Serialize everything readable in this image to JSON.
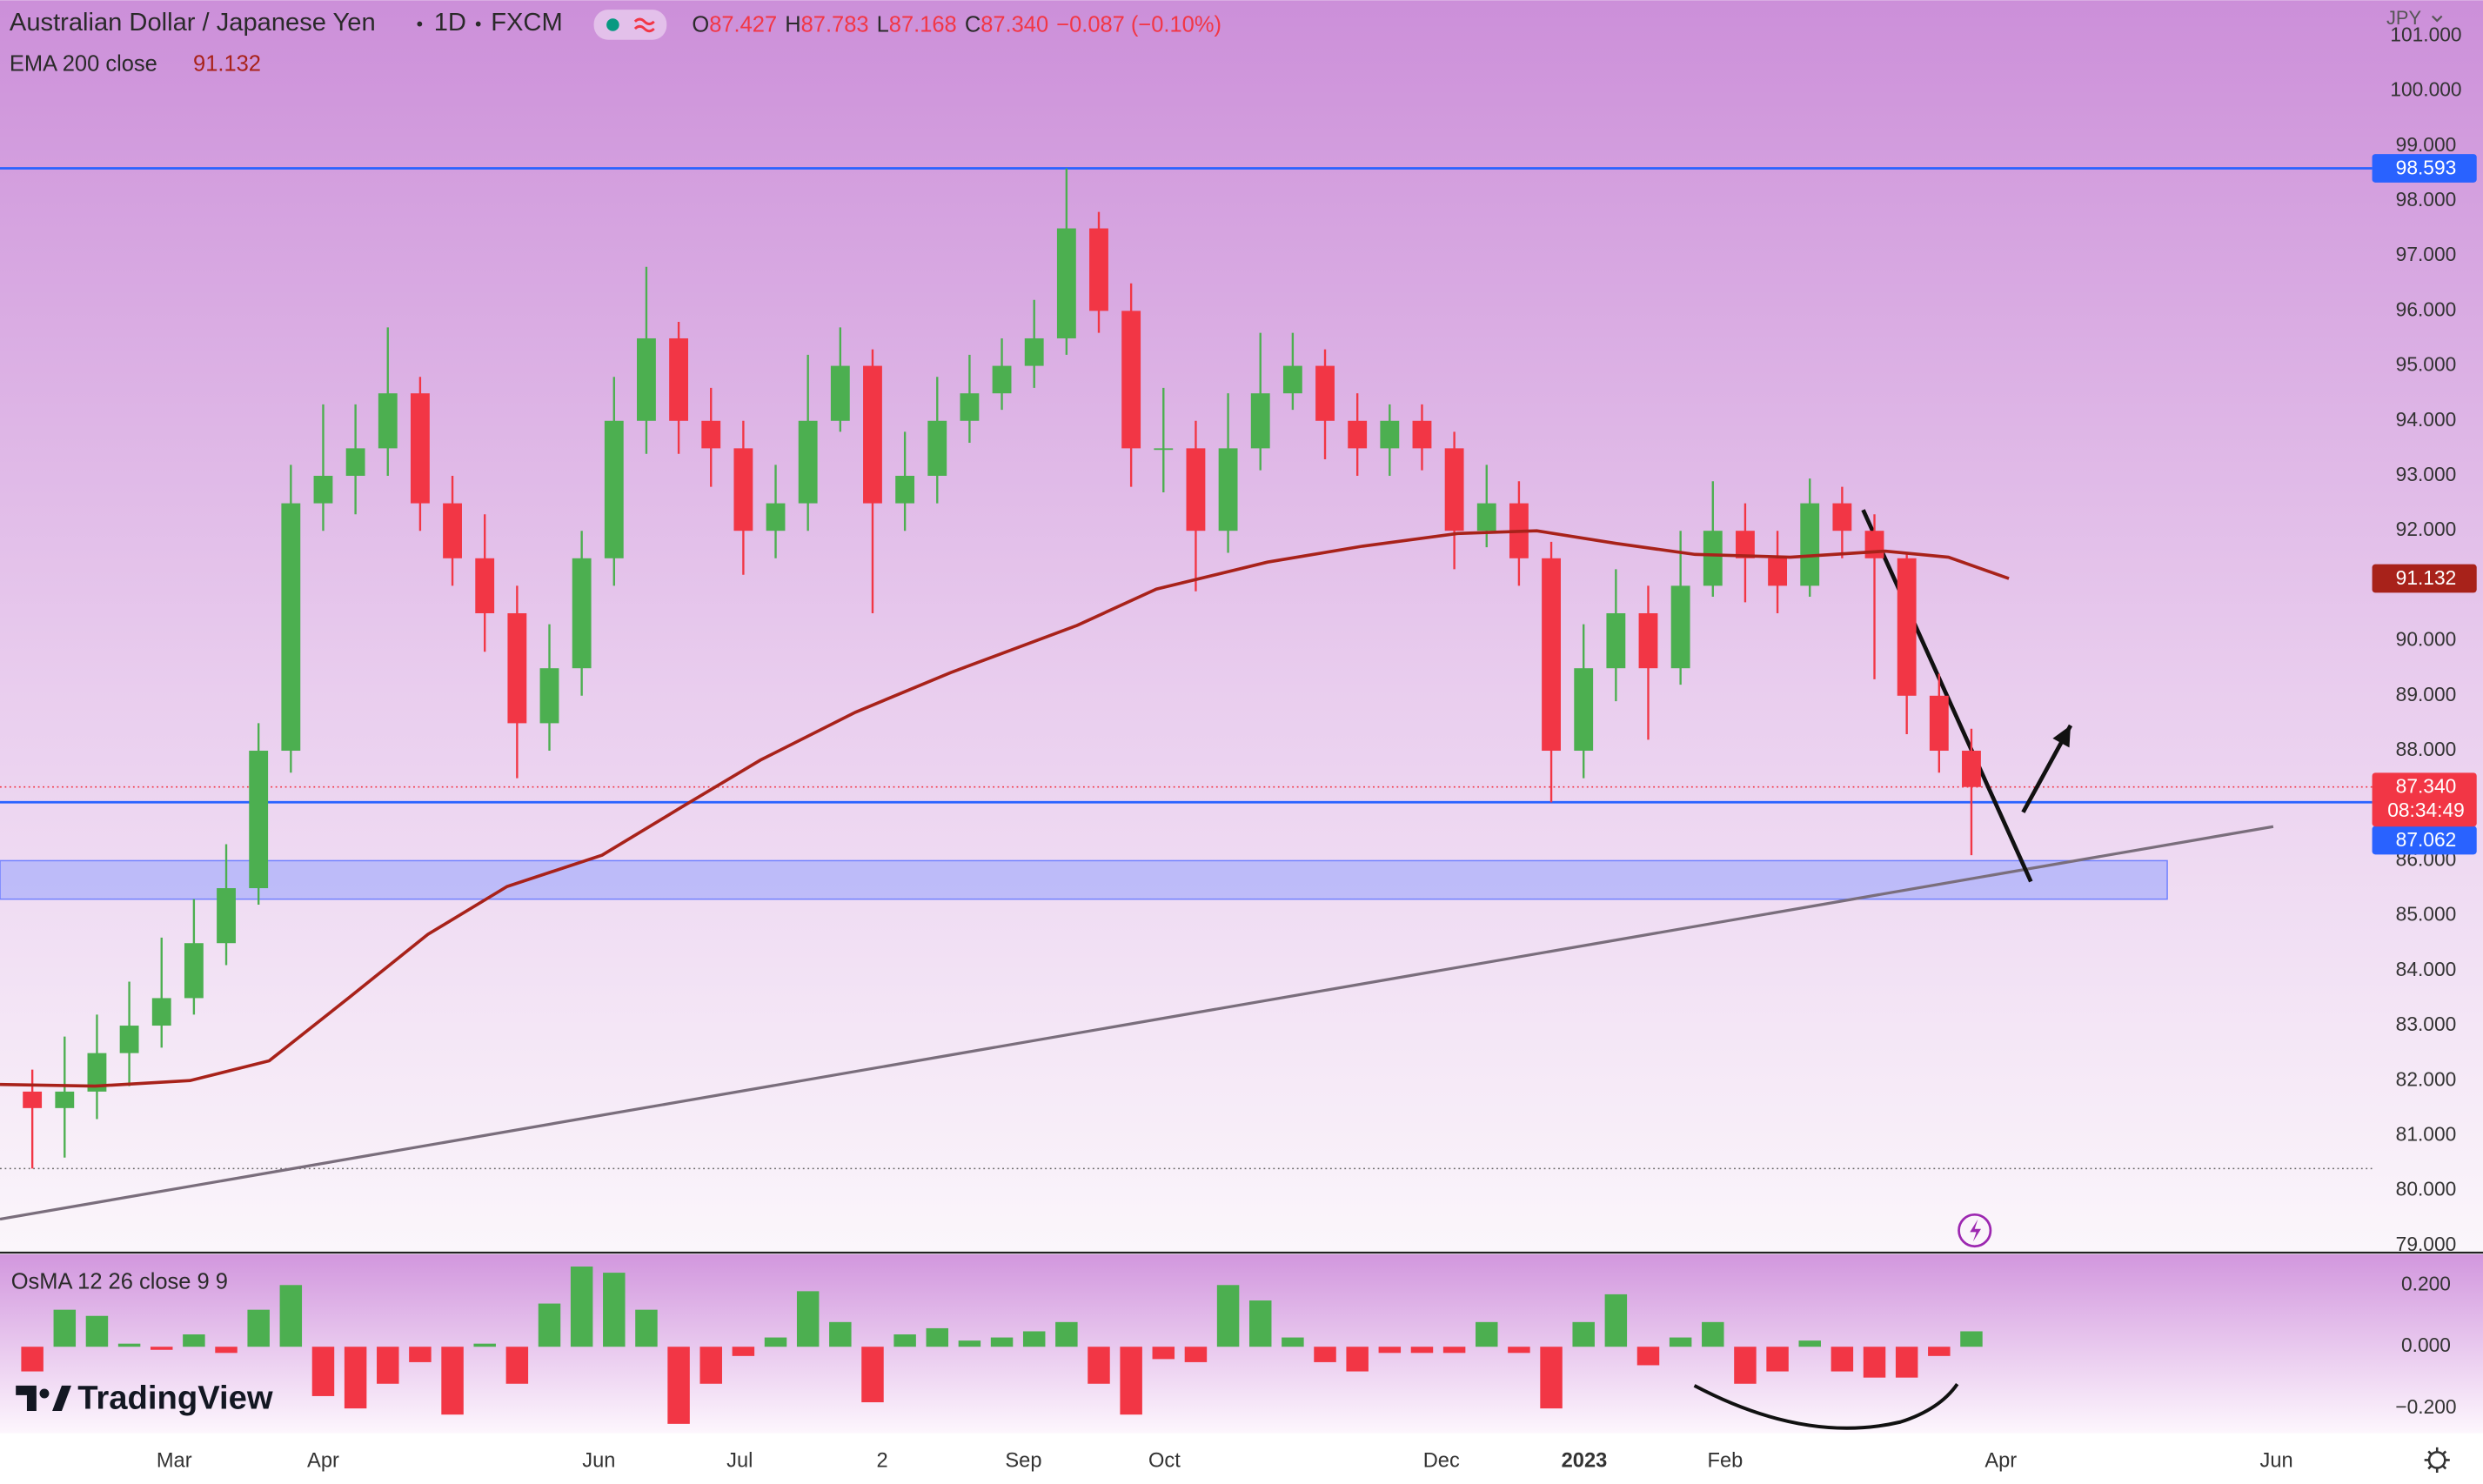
{
  "header": {
    "symbol": "Australian Dollar / Japanese Yen",
    "interval": "1D",
    "source": "FXCM",
    "ohlc": [
      {
        "key": "O",
        "value": "87.427"
      },
      {
        "key": "H",
        "value": "87.783"
      },
      {
        "key": "L",
        "value": "87.168"
      },
      {
        "key": "C",
        "value": "87.340"
      }
    ],
    "change": "−0.087 (−0.10%)",
    "currency": "JPY"
  },
  "branding": "TradingView",
  "chart_data": [
    {
      "type": "candlestick",
      "x": [
        1,
        2,
        3,
        4,
        5,
        6,
        7,
        8,
        9,
        10,
        11,
        12,
        13,
        14,
        15,
        16,
        17,
        18,
        19,
        20,
        21,
        22,
        23,
        24,
        25,
        26,
        27,
        28,
        29,
        30,
        31,
        32,
        33,
        34,
        35,
        36,
        37,
        38,
        39,
        40,
        41,
        42,
        43,
        44,
        45,
        46,
        47,
        48,
        49,
        50,
        51,
        52,
        53,
        54,
        55,
        56,
        57,
        58,
        59,
        60,
        61
      ],
      "open": [
        81.8,
        81.5,
        81.8,
        82.5,
        83.0,
        83.5,
        84.5,
        85.5,
        88.0,
        92.5,
        93.0,
        93.5,
        94.5,
        92.5,
        91.5,
        90.5,
        88.5,
        89.5,
        91.5,
        94.0,
        95.5,
        94.0,
        93.5,
        92.0,
        92.5,
        94.0,
        95.0,
        92.5,
        93.0,
        94.0,
        94.5,
        95.0,
        95.5,
        97.5,
        96.0,
        93.5,
        93.5,
        92.0,
        93.5,
        94.5,
        95.0,
        94.0,
        93.5,
        94.0,
        93.5,
        92.0,
        92.5,
        91.5,
        88.0,
        89.5,
        90.5,
        89.5,
        91.0,
        92.0,
        91.5,
        91.0,
        92.5,
        92.0,
        91.5,
        89.0,
        88.0
      ],
      "high": [
        82.2,
        82.8,
        83.2,
        83.8,
        84.6,
        85.3,
        86.3,
        88.5,
        93.2,
        94.3,
        94.3,
        95.7,
        94.8,
        93.0,
        92.3,
        91.0,
        90.3,
        92.0,
        94.8,
        96.8,
        95.8,
        94.6,
        94.0,
        93.2,
        95.2,
        95.7,
        95.3,
        93.8,
        94.8,
        95.2,
        95.5,
        96.2,
        98.59,
        97.8,
        96.5,
        94.6,
        94.0,
        94.5,
        95.6,
        95.6,
        95.3,
        94.5,
        94.3,
        94.3,
        93.8,
        93.2,
        92.9,
        91.8,
        90.3,
        91.3,
        91.0,
        92.0,
        92.9,
        92.5,
        92.0,
        92.95,
        92.8,
        92.3,
        91.6,
        89.4,
        88.4
      ],
      "low": [
        80.4,
        80.6,
        81.3,
        81.9,
        82.6,
        83.2,
        84.1,
        85.2,
        87.6,
        92.0,
        92.3,
        93.0,
        92.0,
        91.0,
        89.8,
        87.5,
        88.0,
        89.0,
        91.0,
        93.4,
        93.4,
        92.8,
        91.2,
        91.5,
        92.0,
        93.8,
        90.5,
        92.0,
        92.5,
        93.6,
        94.2,
        94.6,
        95.2,
        95.6,
        92.8,
        92.7,
        90.9,
        91.6,
        93.1,
        94.2,
        93.3,
        93.0,
        93.0,
        93.1,
        91.3,
        91.7,
        91.0,
        87.06,
        87.5,
        88.9,
        88.2,
        89.2,
        90.8,
        90.7,
        90.5,
        90.8,
        91.5,
        89.3,
        88.3,
        87.6,
        86.1
      ],
      "close": [
        81.5,
        81.8,
        82.5,
        83.0,
        83.5,
        84.5,
        85.5,
        88.0,
        92.5,
        93.0,
        93.5,
        94.5,
        92.5,
        91.5,
        90.5,
        88.5,
        89.5,
        91.5,
        94.0,
        95.5,
        94.0,
        93.5,
        92.0,
        92.5,
        94.0,
        95.0,
        92.5,
        93.0,
        94.0,
        94.5,
        95.0,
        95.5,
        97.5,
        96.0,
        93.5,
        93.5,
        92.0,
        93.5,
        94.5,
        95.0,
        94.0,
        93.5,
        94.0,
        93.5,
        92.0,
        92.5,
        91.5,
        88.0,
        89.5,
        90.5,
        89.5,
        91.0,
        92.0,
        91.5,
        91.0,
        92.5,
        92.0,
        91.5,
        89.0,
        88.0,
        87.34
      ],
      "up_color": "#4caf50",
      "down_color": "#f23645",
      "xlim": [
        0,
        73.4
      ],
      "xticks": [
        {
          "value": 5.39,
          "label": "Mar"
        },
        {
          "value": 10.0,
          "label": "Apr"
        },
        {
          "value": 18.53,
          "label": "Jun"
        },
        {
          "value": 22.89,
          "label": "Jul"
        },
        {
          "value": 27.3,
          "label": "2"
        },
        {
          "value": 31.67,
          "label": "Sep"
        },
        {
          "value": 36.03,
          "label": "Oct"
        },
        {
          "value": 44.6,
          "label": "Dec"
        },
        {
          "value": 49.02,
          "label": "2023"
        },
        {
          "value": 53.38,
          "label": "Feb"
        },
        {
          "value": 61.91,
          "label": "Apr"
        },
        {
          "value": 70.44,
          "label": "Jun"
        }
      ],
      "ylim": [
        78.9,
        101.65
      ],
      "yticks": [
        {
          "value": 79,
          "label": "79.000"
        },
        {
          "value": 80,
          "label": "80.000"
        },
        {
          "value": 81,
          "label": "81.000"
        },
        {
          "value": 82,
          "label": "82.000"
        },
        {
          "value": 83,
          "label": "83.000"
        },
        {
          "value": 84,
          "label": "84.000"
        },
        {
          "value": 85,
          "label": "85.000"
        },
        {
          "value": 86,
          "label": "86.000"
        },
        {
          "value": 88,
          "label": "88.000"
        },
        {
          "value": 89,
          "label": "89.000"
        },
        {
          "value": 90,
          "label": "90.000"
        },
        {
          "value": 92,
          "label": "92.000"
        },
        {
          "value": 93,
          "label": "93.000"
        },
        {
          "value": 94,
          "label": "94.000"
        },
        {
          "value": 95,
          "label": "95.000"
        },
        {
          "value": 96,
          "label": "96.000"
        },
        {
          "value": 97,
          "label": "97.000"
        },
        {
          "value": 98,
          "label": "98.000"
        },
        {
          "value": 99,
          "label": "99.000"
        },
        {
          "value": 100,
          "label": "100.000"
        },
        {
          "value": 101,
          "label": "101.000"
        }
      ],
      "overlays": [
        {
          "name": "EMA 200 close",
          "value_label": "91.132",
          "color": "#a8221a",
          "x": [
            0,
            2.94,
            5.88,
            8.33,
            10.78,
            13.24,
            15.69,
            18.63,
            21.08,
            23.53,
            26.47,
            29.41,
            33.33,
            35.78,
            39.22,
            42.16,
            45.1,
            47.55,
            50.0,
            52.45,
            55.39,
            58.33,
            60.29,
            62.16
          ],
          "values": [
            81.93,
            81.9,
            82.0,
            82.36,
            83.5,
            84.66,
            85.53,
            86.1,
            86.97,
            87.83,
            88.7,
            89.42,
            90.28,
            90.94,
            91.43,
            91.72,
            91.95,
            92.0,
            91.77,
            91.57,
            91.52,
            91.63,
            91.52,
            91.132
          ]
        }
      ],
      "price_lines": [
        {
          "value": 98.593,
          "label": "98.593",
          "color": "#2962ff"
        },
        {
          "value": 87.062,
          "label": "87.062",
          "color": "#2962ff"
        }
      ],
      "last_price": {
        "value": 87.34,
        "label": "87.340",
        "countdown": "08:34:49",
        "color": "#f23645"
      },
      "dotted_lines": [
        80.4
      ],
      "zone": {
        "x": [
          0,
          67.06
        ],
        "values": [
          85.3,
          86.0
        ],
        "color": "#8c9cff"
      },
      "drawings": [
        {
          "color": "#7a6e7c",
          "x": [
            0,
            70.34
          ],
          "values": [
            79.48,
            86.62
          ]
        },
        {
          "color": "#111111",
          "x": [
            57.65,
            62.84
          ],
          "values": [
            92.38,
            85.62
          ]
        },
        {
          "color": "#111111",
          "arrow": true,
          "x": [
            62.6,
            64.07
          ],
          "values": [
            86.88,
            88.46
          ]
        }
      ]
    },
    {
      "type": "bar",
      "name": "OsMA 12 26 close 9 9",
      "x": [
        1,
        2,
        3,
        4,
        5,
        6,
        7,
        8,
        9,
        10,
        11,
        12,
        13,
        14,
        15,
        16,
        17,
        18,
        19,
        20,
        21,
        22,
        23,
        24,
        25,
        26,
        27,
        28,
        29,
        30,
        31,
        32,
        33,
        34,
        35,
        36,
        37,
        38,
        39,
        40,
        41,
        42,
        43,
        44,
        45,
        46,
        47,
        48,
        49,
        50,
        51,
        52,
        53,
        54,
        55,
        56,
        57,
        58,
        59,
        60,
        61
      ],
      "values": [
        -0.08,
        0.12,
        0.1,
        0.01,
        -0.01,
        0.04,
        -0.02,
        0.12,
        0.2,
        -0.16,
        -0.2,
        -0.12,
        -0.05,
        -0.22,
        0.01,
        -0.12,
        0.14,
        0.26,
        0.24,
        0.12,
        -0.25,
        -0.12,
        -0.03,
        0.03,
        0.18,
        0.08,
        -0.18,
        0.04,
        0.06,
        0.02,
        0.03,
        0.05,
        0.08,
        -0.12,
        -0.22,
        -0.04,
        -0.05,
        0.2,
        0.15,
        0.03,
        -0.05,
        -0.08,
        -0.02,
        -0.02,
        -0.02,
        0.08,
        -0.02,
        -0.2,
        0.08,
        0.17,
        -0.06,
        0.03,
        0.08,
        -0.12,
        -0.08,
        0.02,
        -0.08,
        -0.1,
        -0.1,
        -0.03,
        0.05
      ],
      "up_color": "#4caf50",
      "down_color": "#f23645",
      "ylim": [
        -0.28,
        0.3
      ],
      "yticks": [
        {
          "value": -0.2,
          "label": "−0.200"
        },
        {
          "value": 0,
          "label": "0.000"
        },
        {
          "value": 0.2,
          "label": "0.200"
        }
      ]
    }
  ]
}
